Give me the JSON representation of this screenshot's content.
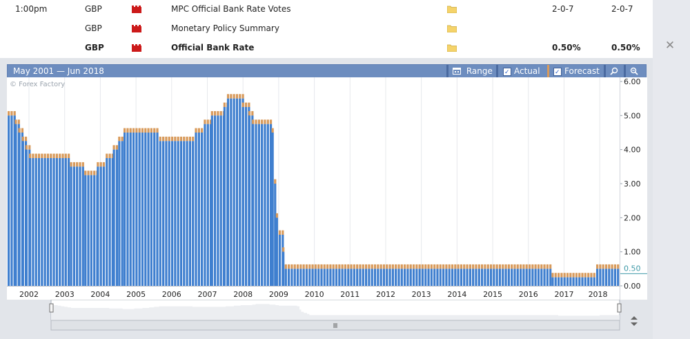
{
  "events": [
    {
      "time": "1:00pm",
      "currency": "GBP",
      "event": "MPC Official Bank Rate Votes",
      "actual": "2-0-7",
      "forecast": "2-0-7",
      "bold": false
    },
    {
      "time": "",
      "currency": "GBP",
      "event": "Monetary Policy Summary",
      "actual": "",
      "forecast": "",
      "bold": false
    },
    {
      "time": "",
      "currency": "GBP",
      "event": "Official Bank Rate",
      "actual": "0.50%",
      "forecast": "0.50%",
      "bold": true
    }
  ],
  "chart_header": {
    "range_text": "May 2001 — Jun 2018",
    "range_btn": "Range",
    "actual_btn": "Actual",
    "forecast_btn": "Forecast"
  },
  "watermark": "© Forex Factory",
  "colors": {
    "actual": "#3f7fcf",
    "forecast": "#d89a5b",
    "header": "#6d8dbf",
    "impact": "#cc1a1a",
    "folder": "#f5d36a"
  },
  "chart_data": {
    "type": "bar",
    "ylim": [
      0,
      6
    ],
    "y_ticks": [
      "6.00",
      "5.00",
      "4.00",
      "3.00",
      "2.00",
      "1.00",
      "0.00"
    ],
    "current_value_label": "0.50",
    "x_ticks": [
      "2002",
      "2003",
      "2004",
      "2005",
      "2006",
      "2007",
      "2008",
      "2009",
      "2010",
      "2011",
      "2012",
      "2013",
      "2014",
      "2015",
      "2016",
      "2017",
      "2018"
    ],
    "series": [
      {
        "name": "Actual",
        "segments": [
          [
            2001.35,
            2001.55,
            5.0
          ],
          [
            2001.55,
            2001.65,
            4.75
          ],
          [
            2001.65,
            2001.75,
            4.5
          ],
          [
            2001.75,
            2001.85,
            4.25
          ],
          [
            2001.85,
            2001.95,
            4.0
          ],
          [
            2001.95,
            2003.1,
            3.75
          ],
          [
            2003.1,
            2003.5,
            3.5
          ],
          [
            2003.5,
            2003.85,
            3.25
          ],
          [
            2003.85,
            2004.1,
            3.5
          ],
          [
            2004.1,
            2004.3,
            3.75
          ],
          [
            2004.3,
            2004.45,
            4.0
          ],
          [
            2004.45,
            2004.6,
            4.25
          ],
          [
            2004.6,
            2005.6,
            4.5
          ],
          [
            2005.6,
            2006.6,
            4.25
          ],
          [
            2006.6,
            2006.85,
            4.5
          ],
          [
            2006.85,
            2007.05,
            4.75
          ],
          [
            2007.05,
            2007.4,
            5.0
          ],
          [
            2007.4,
            2007.5,
            5.25
          ],
          [
            2007.5,
            2007.92,
            5.5
          ],
          [
            2007.92,
            2008.1,
            5.25
          ],
          [
            2008.1,
            2008.2,
            5.0
          ],
          [
            2008.2,
            2008.75,
            4.75
          ],
          [
            2008.75,
            2008.82,
            4.5
          ],
          [
            2008.82,
            2008.87,
            3.0
          ],
          [
            2008.87,
            2008.95,
            2.0
          ],
          [
            2008.95,
            2009.05,
            1.5
          ],
          [
            2009.05,
            2009.12,
            1.0
          ],
          [
            2009.12,
            2016.6,
            0.5
          ],
          [
            2016.6,
            2017.85,
            0.25
          ],
          [
            2017.85,
            2018.45,
            0.5
          ]
        ]
      },
      {
        "name": "Forecast",
        "offset": 0.13
      }
    ]
  }
}
